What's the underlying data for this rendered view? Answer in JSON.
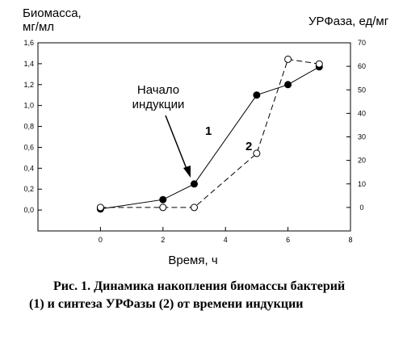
{
  "chart_data": {
    "type": "line",
    "ylabel_left": [
      "Биомасса,",
      "мг/мл"
    ],
    "ylabel_right": "УРФаза, ед/мг",
    "xlabel": "Время, ч",
    "xlim": [
      -2,
      8
    ],
    "xticks": [
      "0",
      "2",
      "4",
      "6",
      "8"
    ],
    "ylim_left": [
      -0.2,
      1.6
    ],
    "yticks_left": [
      "0,0",
      "0,2",
      "0,4",
      "0,6",
      "0,8",
      "1,0",
      "1,2",
      "1,4",
      "1,6"
    ],
    "ylim_right": [
      -10,
      70
    ],
    "yticks_right": [
      "0",
      "10",
      "20",
      "30",
      "40",
      "50",
      "60",
      "70"
    ],
    "grid": false,
    "series": [
      {
        "name": "1",
        "axis": "left",
        "marker": "filled-circle",
        "line": "solid",
        "x": [
          0,
          2,
          3,
          5,
          6,
          7
        ],
        "y": [
          0.01,
          0.1,
          0.25,
          1.1,
          1.2,
          1.37
        ]
      },
      {
        "name": "2",
        "axis": "right",
        "marker": "open-circle",
        "line": "dashed",
        "x": [
          0,
          2,
          3,
          5,
          6,
          7
        ],
        "y": [
          0,
          0,
          0,
          23,
          63,
          61
        ]
      }
    ],
    "annotation": [
      "Начало",
      "индукции"
    ]
  },
  "caption": {
    "line1": "Рис. 1. Динамика накопления биомассы бактерий",
    "line2": "(1) и синтеза УРФазы (2) от времени индукции"
  }
}
